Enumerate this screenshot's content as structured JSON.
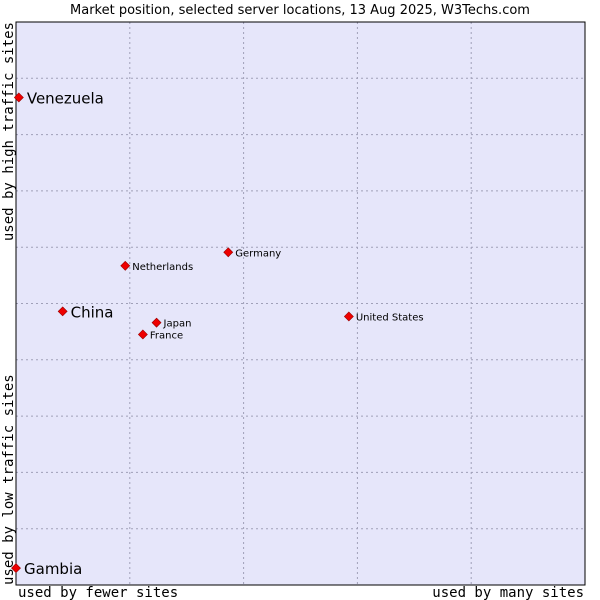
{
  "chart_data": {
    "type": "scatter",
    "title": "Market position, selected server locations, 13 Aug 2025, W3Techs.com",
    "xlabel_left": "used by fewer sites",
    "xlabel_right": "used by many sites",
    "ylabel_top": "used by high traffic sites",
    "ylabel_bottom": "used by low traffic sites",
    "xlim": [
      0,
      100
    ],
    "ylim": [
      0,
      100
    ],
    "grid": true,
    "grid_divisions": {
      "x": 5,
      "y": 10
    },
    "colors": {
      "plot_bg": "#e6e6fa",
      "grid": "#a0a0b8",
      "marker": "#ee0000",
      "marker_stroke": "#990000",
      "border": "#000000"
    },
    "points": [
      {
        "name": "Venezuela",
        "x": 0.5,
        "y": 86.6,
        "emphasis": true
      },
      {
        "name": "Germany",
        "x": 37.3,
        "y": 59.1,
        "emphasis": false
      },
      {
        "name": "Netherlands",
        "x": 19.2,
        "y": 56.7,
        "emphasis": false
      },
      {
        "name": "China",
        "x": 8.2,
        "y": 48.6,
        "emphasis": true
      },
      {
        "name": "United States",
        "x": 58.5,
        "y": 47.7,
        "emphasis": false
      },
      {
        "name": "Japan",
        "x": 24.7,
        "y": 46.6,
        "emphasis": false
      },
      {
        "name": "France",
        "x": 22.3,
        "y": 44.5,
        "emphasis": false
      },
      {
        "name": "Gambia",
        "x": 0.0,
        "y": 3.0,
        "emphasis": true
      }
    ]
  }
}
